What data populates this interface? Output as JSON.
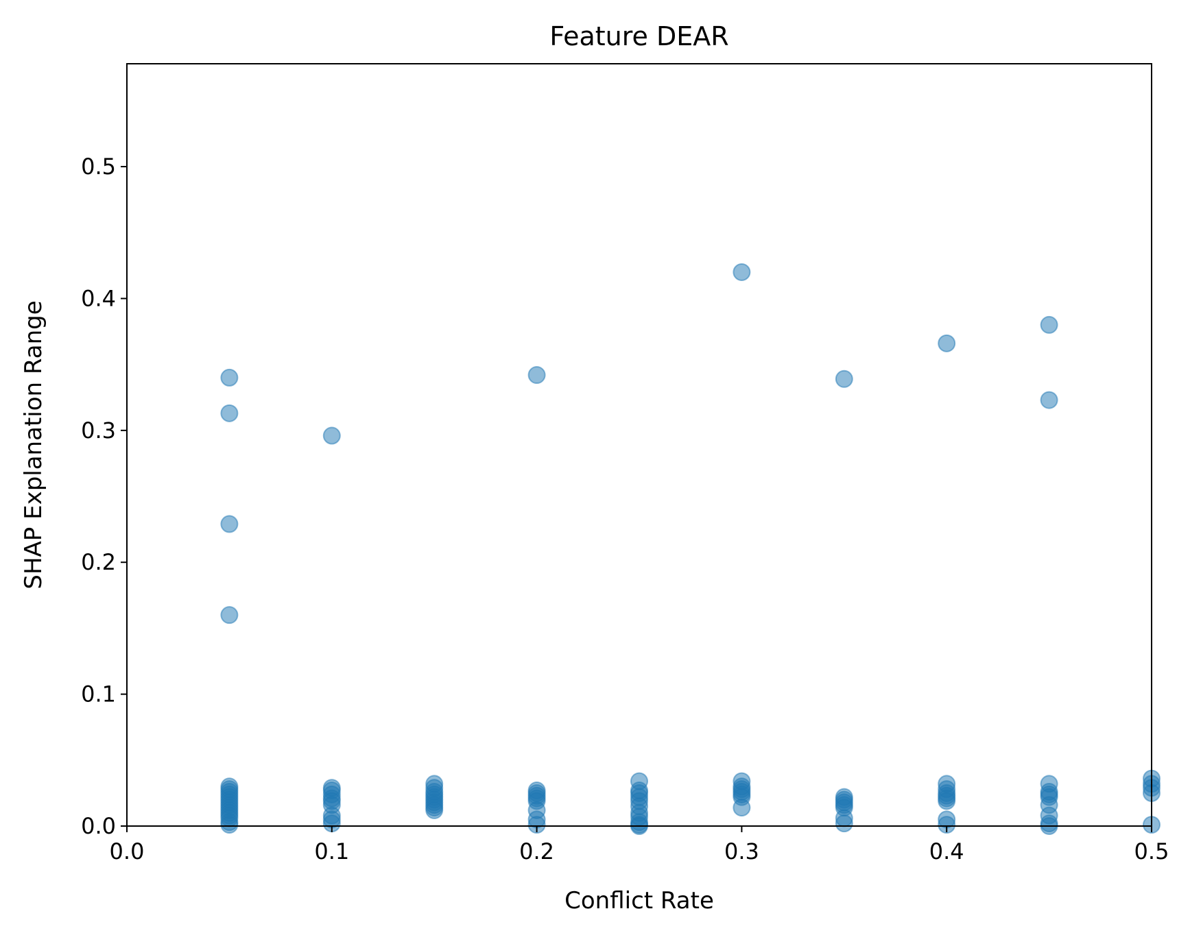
{
  "chart_data": {
    "type": "scatter",
    "title": "Feature DEAR",
    "xlabel": "Conflict Rate",
    "ylabel": "SHAP Explanation Range",
    "xlim": [
      0.0,
      0.5
    ],
    "ylim": [
      0.0,
      0.578
    ],
    "xticks": [
      "0.0",
      "0.1",
      "0.2",
      "0.3",
      "0.4",
      "0.5"
    ],
    "yticks": [
      "0.0",
      "0.1",
      "0.2",
      "0.3",
      "0.4",
      "0.5"
    ],
    "grid": false,
    "legend": "none",
    "point_color": "#1f77b4",
    "point_alpha": 0.5,
    "points": [
      [
        0.05,
        0.34
      ],
      [
        0.05,
        0.313
      ],
      [
        0.05,
        0.229
      ],
      [
        0.05,
        0.16
      ],
      [
        0.05,
        0.03
      ],
      [
        0.05,
        0.028
      ],
      [
        0.05,
        0.026
      ],
      [
        0.05,
        0.024
      ],
      [
        0.05,
        0.022
      ],
      [
        0.05,
        0.02
      ],
      [
        0.05,
        0.018
      ],
      [
        0.05,
        0.016
      ],
      [
        0.05,
        0.014
      ],
      [
        0.05,
        0.012
      ],
      [
        0.05,
        0.01
      ],
      [
        0.05,
        0.008
      ],
      [
        0.05,
        0.006
      ],
      [
        0.05,
        0.003
      ],
      [
        0.05,
        0.001
      ],
      [
        0.1,
        0.296
      ],
      [
        0.1,
        0.029
      ],
      [
        0.1,
        0.027
      ],
      [
        0.1,
        0.024
      ],
      [
        0.1,
        0.021
      ],
      [
        0.1,
        0.019
      ],
      [
        0.1,
        0.016
      ],
      [
        0.1,
        0.008
      ],
      [
        0.1,
        0.005
      ],
      [
        0.1,
        0.002
      ],
      [
        0.15,
        0.032
      ],
      [
        0.15,
        0.029
      ],
      [
        0.15,
        0.026
      ],
      [
        0.15,
        0.024
      ],
      [
        0.15,
        0.022
      ],
      [
        0.15,
        0.02
      ],
      [
        0.15,
        0.018
      ],
      [
        0.15,
        0.016
      ],
      [
        0.15,
        0.014
      ],
      [
        0.15,
        0.012
      ],
      [
        0.2,
        0.342
      ],
      [
        0.2,
        0.027
      ],
      [
        0.2,
        0.025
      ],
      [
        0.2,
        0.023
      ],
      [
        0.2,
        0.021
      ],
      [
        0.2,
        0.019
      ],
      [
        0.2,
        0.012
      ],
      [
        0.2,
        0.005
      ],
      [
        0.2,
        0.001
      ],
      [
        0.25,
        0.034
      ],
      [
        0.25,
        0.027
      ],
      [
        0.25,
        0.025
      ],
      [
        0.25,
        0.022
      ],
      [
        0.25,
        0.019
      ],
      [
        0.25,
        0.015
      ],
      [
        0.25,
        0.01
      ],
      [
        0.25,
        0.007
      ],
      [
        0.25,
        0.003
      ],
      [
        0.25,
        0.001
      ],
      [
        0.25,
        0.0
      ],
      [
        0.3,
        0.42
      ],
      [
        0.3,
        0.034
      ],
      [
        0.3,
        0.03
      ],
      [
        0.3,
        0.028
      ],
      [
        0.3,
        0.026
      ],
      [
        0.3,
        0.024
      ],
      [
        0.3,
        0.022
      ],
      [
        0.3,
        0.014
      ],
      [
        0.35,
        0.339
      ],
      [
        0.35,
        0.022
      ],
      [
        0.35,
        0.02
      ],
      [
        0.35,
        0.018
      ],
      [
        0.35,
        0.016
      ],
      [
        0.35,
        0.014
      ],
      [
        0.35,
        0.006
      ],
      [
        0.35,
        0.002
      ],
      [
        0.4,
        0.366
      ],
      [
        0.4,
        0.032
      ],
      [
        0.4,
        0.028
      ],
      [
        0.4,
        0.025
      ],
      [
        0.4,
        0.023
      ],
      [
        0.4,
        0.021
      ],
      [
        0.4,
        0.019
      ],
      [
        0.4,
        0.005
      ],
      [
        0.4,
        0.001
      ],
      [
        0.45,
        0.38
      ],
      [
        0.45,
        0.323
      ],
      [
        0.45,
        0.032
      ],
      [
        0.45,
        0.026
      ],
      [
        0.45,
        0.024
      ],
      [
        0.45,
        0.022
      ],
      [
        0.45,
        0.016
      ],
      [
        0.45,
        0.008
      ],
      [
        0.45,
        0.002
      ],
      [
        0.45,
        0.0
      ],
      [
        0.5,
        0.036
      ],
      [
        0.5,
        0.032
      ],
      [
        0.5,
        0.029
      ],
      [
        0.5,
        0.025
      ],
      [
        0.5,
        0.001
      ]
    ]
  }
}
